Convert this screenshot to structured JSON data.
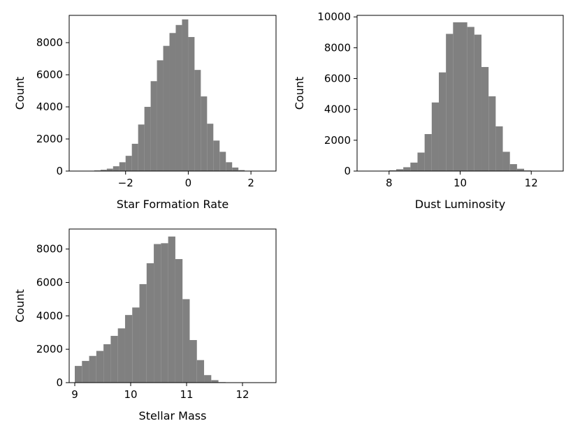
{
  "chart_data": [
    {
      "type": "bar",
      "subtype": "histogram",
      "xlabel": "Star Formation Rate",
      "ylabel": "Count",
      "xlim": [
        -3.8,
        2.8
      ],
      "ylim": [
        0,
        9700
      ],
      "xticks": [
        -2,
        0,
        2
      ],
      "xtick_labels": [
        "−2",
        "0",
        "2"
      ],
      "yticks": [
        0,
        2000,
        4000,
        6000,
        8000
      ],
      "ytick_labels": [
        "0",
        "2000",
        "4000",
        "6000",
        "8000"
      ],
      "bin_width": 0.2,
      "bins": [
        [
          -3.6,
          5
        ],
        [
          -3.4,
          10
        ],
        [
          -3.2,
          20
        ],
        [
          -3.0,
          40
        ],
        [
          -2.8,
          80
        ],
        [
          -2.6,
          150
        ],
        [
          -2.4,
          300
        ],
        [
          -2.2,
          550
        ],
        [
          -2.0,
          950
        ],
        [
          -1.8,
          1700
        ],
        [
          -1.6,
          2900
        ],
        [
          -1.4,
          4000
        ],
        [
          -1.2,
          5600
        ],
        [
          -1.0,
          6900
        ],
        [
          -0.8,
          7800
        ],
        [
          -0.6,
          8600
        ],
        [
          -0.4,
          9100
        ],
        [
          -0.2,
          9450
        ],
        [
          0.0,
          8350
        ],
        [
          0.2,
          6300
        ],
        [
          0.4,
          4650
        ],
        [
          0.6,
          2950
        ],
        [
          0.8,
          1900
        ],
        [
          1.0,
          1200
        ],
        [
          1.2,
          550
        ],
        [
          1.4,
          220
        ],
        [
          1.6,
          60
        ],
        [
          1.8,
          20
        ],
        [
          2.0,
          10
        ]
      ],
      "bar_color": "#808080",
      "grid": false,
      "legend": false
    },
    {
      "type": "bar",
      "subtype": "histogram",
      "xlabel": "Dust Luminosity",
      "ylabel": "Count",
      "xlim": [
        7.1,
        12.9
      ],
      "ylim": [
        0,
        10100
      ],
      "xticks": [
        8,
        10,
        12
      ],
      "xtick_labels": [
        "8",
        "10",
        "12"
      ],
      "yticks": [
        0,
        2000,
        4000,
        6000,
        8000,
        10000
      ],
      "ytick_labels": [
        "0",
        "2000",
        "4000",
        "6000",
        "8000",
        "10000"
      ],
      "bin_width": 0.2,
      "bins": [
        [
          7.4,
          5
        ],
        [
          7.6,
          10
        ],
        [
          7.8,
          20
        ],
        [
          8.0,
          50
        ],
        [
          8.2,
          120
        ],
        [
          8.4,
          250
        ],
        [
          8.6,
          550
        ],
        [
          8.8,
          1200
        ],
        [
          9.0,
          2400
        ],
        [
          9.2,
          4450
        ],
        [
          9.4,
          6400
        ],
        [
          9.6,
          8900
        ],
        [
          9.8,
          9650
        ],
        [
          10.0,
          9650
        ],
        [
          10.2,
          9350
        ],
        [
          10.4,
          8850
        ],
        [
          10.6,
          6750
        ],
        [
          10.8,
          4850
        ],
        [
          11.0,
          2900
        ],
        [
          11.2,
          1250
        ],
        [
          11.4,
          450
        ],
        [
          11.6,
          150
        ],
        [
          11.8,
          40
        ],
        [
          12.0,
          10
        ],
        [
          12.2,
          5
        ]
      ],
      "bar_color": "#808080",
      "grid": false,
      "legend": false
    },
    {
      "type": "bar",
      "subtype": "histogram",
      "xlabel": "Stellar Mass",
      "ylabel": "Count",
      "xlim": [
        8.9,
        12.6
      ],
      "ylim": [
        0,
        9200
      ],
      "xticks": [
        9,
        10,
        11,
        12
      ],
      "xtick_labels": [
        "9",
        "10",
        "11",
        "12"
      ],
      "yticks": [
        0,
        2000,
        4000,
        6000,
        8000
      ],
      "ytick_labels": [
        "0",
        "2000",
        "4000",
        "6000",
        "8000"
      ],
      "bin_width": 0.1285,
      "bins": [
        [
          9.0,
          1000
        ],
        [
          9.1285,
          1300
        ],
        [
          9.257,
          1600
        ],
        [
          9.3855,
          1900
        ],
        [
          9.514,
          2300
        ],
        [
          9.6425,
          2800
        ],
        [
          9.771,
          3250
        ],
        [
          9.8995,
          4050
        ],
        [
          10.028,
          4500
        ],
        [
          10.1565,
          5900
        ],
        [
          10.285,
          7150
        ],
        [
          10.4135,
          8300
        ],
        [
          10.542,
          8350
        ],
        [
          10.6705,
          8750
        ],
        [
          10.799,
          7400
        ],
        [
          10.9275,
          5000
        ],
        [
          11.056,
          2550
        ],
        [
          11.1845,
          1350
        ],
        [
          11.313,
          450
        ],
        [
          11.4415,
          150
        ],
        [
          11.57,
          30
        ],
        [
          11.6985,
          10
        ],
        [
          11.827,
          5
        ]
      ],
      "bar_color": "#808080",
      "grid": false,
      "legend": false
    }
  ]
}
